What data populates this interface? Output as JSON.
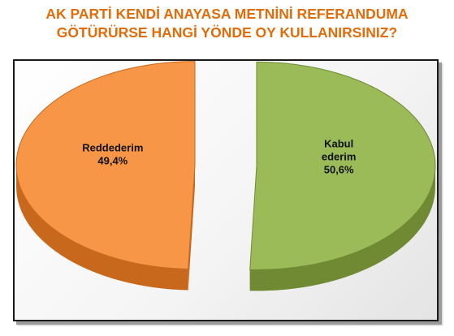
{
  "title_lines": [
    "AK PARTİ KENDİ ANAYASA METNİNİ REFERANDUMA",
    "GÖTÜRÜRSE HANGİ YÖNDE OY KULLANIRSINIZ?"
  ],
  "colors": {
    "title": "#e36c0a",
    "reddederim_top": "#f79646",
    "reddederim_side": "#c8681d",
    "kabul_top": "#9bbb59",
    "kabul_side": "#6f8a33"
  },
  "chart_data": {
    "type": "pie",
    "title": "AK PARTİ KENDİ ANAYASA METNİNİ REFERANDUMA GÖTÜRÜRSE HANGİ YÖNDE OY KULLANIRSINIZ?",
    "slices": [
      {
        "label_lines": [
          "Kabul",
          "ederim"
        ],
        "value_label": "50,6%",
        "value": 50.6,
        "color": "#9bbb59",
        "side_color": "#6f8a33"
      },
      {
        "label_lines": [
          "Reddederim"
        ],
        "value_label": "49,4%",
        "value": 49.4,
        "color": "#f79646",
        "side_color": "#c8681d"
      }
    ],
    "style": "3d-exploded",
    "legend": "none"
  }
}
